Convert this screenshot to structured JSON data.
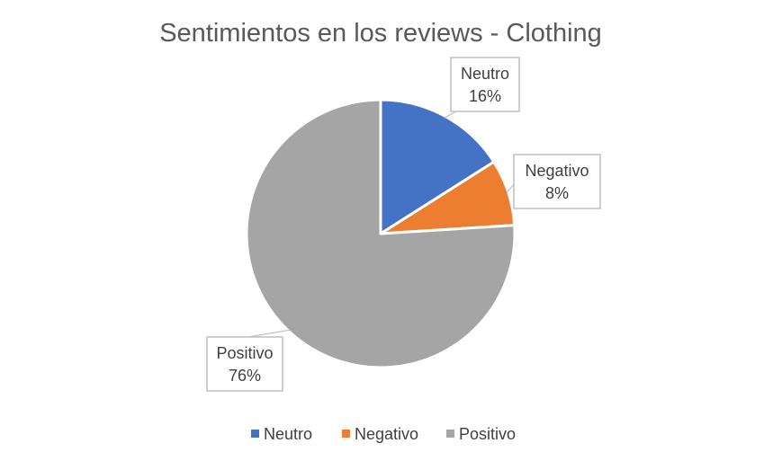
{
  "chart_data": {
    "type": "pie",
    "title": "Sentimientos en los reviews - Clothing",
    "categories": [
      "Neutro",
      "Negativo",
      "Positivo"
    ],
    "values": [
      16,
      8,
      76
    ],
    "value_labels": [
      "16%",
      "8%",
      "76%"
    ],
    "colors": [
      "#4472C4",
      "#ED7D31",
      "#A5A5A5"
    ],
    "legend_position": "bottom",
    "start_angle": "12 o'clock",
    "direction": "clockwise"
  }
}
